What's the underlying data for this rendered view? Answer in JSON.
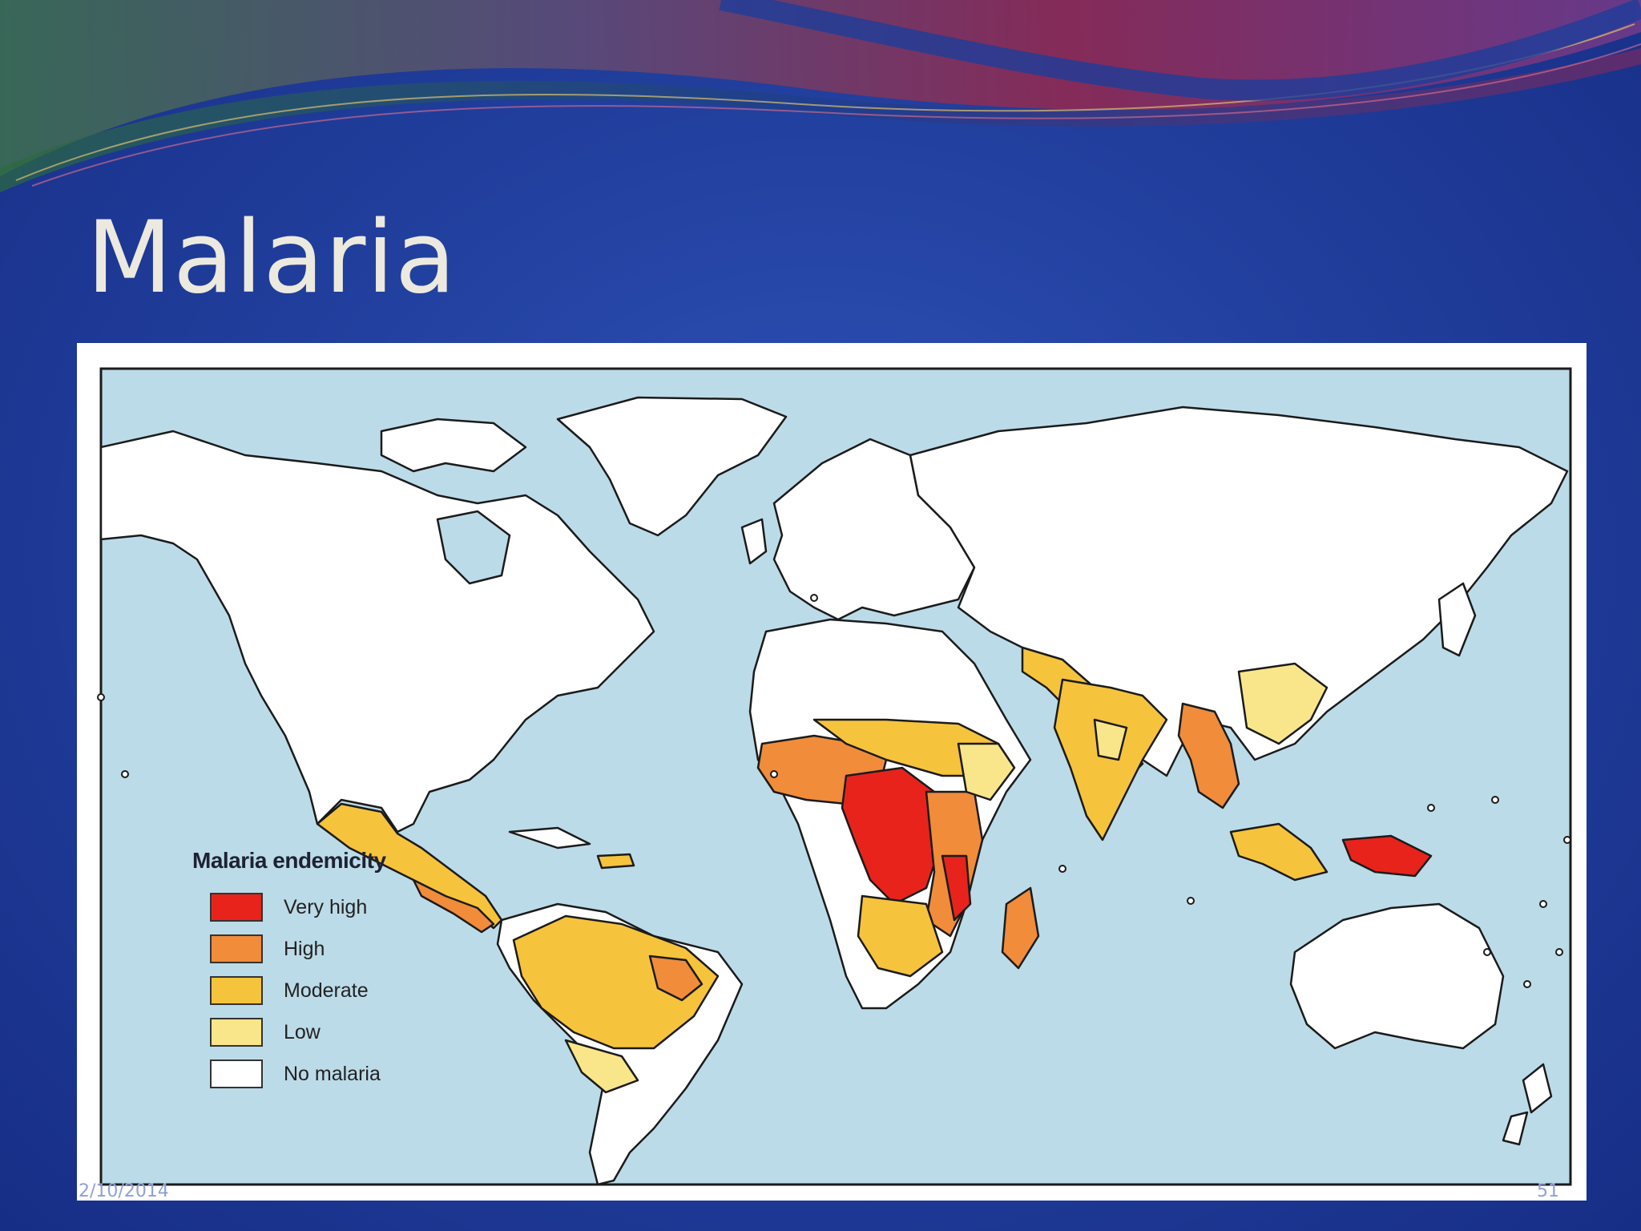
{
  "slide": {
    "title": "Malaria",
    "footer_date": "2/10/2014",
    "footer_page": "51"
  },
  "legend": {
    "title": "Malaria endemicity",
    "items": [
      {
        "label": "Very high",
        "color": "#e8231c"
      },
      {
        "label": "High",
        "color": "#f08c3a"
      },
      {
        "label": "Moderate",
        "color": "#f6c33c"
      },
      {
        "label": "Low",
        "color": "#fae68a"
      },
      {
        "label": "No malaria",
        "color": "#ffffff"
      }
    ]
  },
  "colors": {
    "ocean": "#bcdbe8",
    "land": "#ffffff",
    "outline": "#1b1b1b"
  }
}
